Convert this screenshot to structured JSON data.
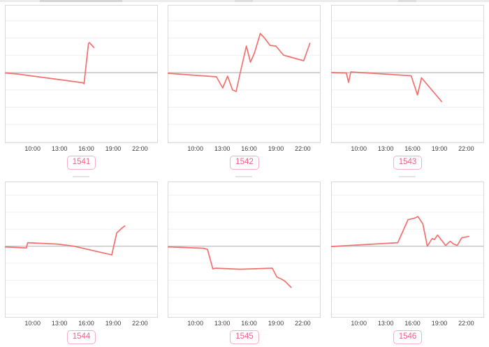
{
  "page": {
    "background": "#ffffff"
  },
  "style": {
    "line_color": "#f4706e",
    "zero_line_color": "#c6c6c6",
    "grid_color": "#f1f1f1",
    "border_color": "#d9d9d9",
    "tick_color": "#3c3c3c",
    "badge_color": "#ee6188",
    "badge_border": "#f6aec6"
  },
  "chart_data": [
    {
      "type": "line",
      "badge": "1541",
      "x_range": [
        6.9,
        24
      ],
      "zero_frac": 0.49,
      "tick_times": [
        10,
        13,
        16,
        19,
        22
      ],
      "tick_labels": [
        "10:00",
        "13:00",
        "16:00",
        "19:00",
        "22:00"
      ],
      "points": [
        [
          6.9,
          -0.5
        ],
        [
          8.3,
          -2
        ],
        [
          15.6,
          -14.5
        ],
        [
          15.75,
          -16
        ],
        [
          16.25,
          42
        ],
        [
          16.35,
          43
        ],
        [
          16.85,
          36
        ]
      ]
    },
    {
      "type": "line",
      "badge": "1542",
      "x_range": [
        6.9,
        24
      ],
      "zero_frac": 0.49,
      "tick_times": [
        10,
        13,
        16,
        19,
        22
      ],
      "tick_labels": [
        "10:00",
        "13:00",
        "16:00",
        "19:00",
        "22:00"
      ],
      "points": [
        [
          6.9,
          -1
        ],
        [
          12.35,
          -6
        ],
        [
          13.05,
          -22
        ],
        [
          13.6,
          -5
        ],
        [
          14.15,
          -25
        ],
        [
          14.55,
          -27
        ],
        [
          15.05,
          2
        ],
        [
          15.7,
          38
        ],
        [
          16.15,
          15
        ],
        [
          16.6,
          28
        ],
        [
          17.25,
          56
        ],
        [
          17.7,
          50
        ],
        [
          18.35,
          39
        ],
        [
          19.0,
          38
        ],
        [
          19.85,
          25
        ],
        [
          22.1,
          17
        ],
        [
          22.8,
          42
        ]
      ]
    },
    {
      "type": "line",
      "badge": "1543",
      "x_range": [
        6.9,
        24
      ],
      "zero_frac": 0.49,
      "tick_times": [
        10,
        13,
        16,
        19,
        22
      ],
      "tick_labels": [
        "10:00",
        "13:00",
        "16:00",
        "19:00",
        "22:00"
      ],
      "points": [
        [
          6.9,
          0
        ],
        [
          8.6,
          -0.5
        ],
        [
          8.85,
          -14
        ],
        [
          9.1,
          1
        ],
        [
          15.85,
          -4.5
        ],
        [
          16.55,
          -32
        ],
        [
          17.0,
          -7.5
        ],
        [
          19.25,
          -41.5
        ]
      ]
    },
    {
      "type": "line",
      "badge": "1544",
      "x_range": [
        6.9,
        24
      ],
      "zero_frac": 0.475,
      "tick_times": [
        10,
        13,
        16,
        19,
        22
      ],
      "tick_labels": [
        "10:00",
        "13:00",
        "16:00",
        "19:00",
        "22:00"
      ],
      "points": [
        [
          6.9,
          -1
        ],
        [
          9.3,
          -2.5
        ],
        [
          9.45,
          5
        ],
        [
          12.8,
          3
        ],
        [
          14.6,
          0
        ],
        [
          18.7,
          -12
        ],
        [
          18.85,
          -12.5
        ],
        [
          19.4,
          19
        ],
        [
          19.9,
          25
        ],
        [
          20.3,
          29
        ]
      ]
    },
    {
      "type": "line",
      "badge": "1545",
      "x_range": [
        6.9,
        24
      ],
      "zero_frac": 0.475,
      "tick_times": [
        10,
        13,
        16,
        19,
        22
      ],
      "tick_labels": [
        "10:00",
        "13:00",
        "16:00",
        "19:00",
        "22:00"
      ],
      "points": [
        [
          6.9,
          -1
        ],
        [
          10.9,
          -3
        ],
        [
          11.35,
          -4.5
        ],
        [
          11.95,
          -32.5
        ],
        [
          12.3,
          -31.5
        ],
        [
          15.0,
          -33
        ],
        [
          18.6,
          -31.5
        ],
        [
          19.1,
          -44
        ],
        [
          19.6,
          -47
        ],
        [
          20.0,
          -50
        ],
        [
          20.7,
          -59
        ]
      ]
    },
    {
      "type": "line",
      "badge": "1546",
      "x_range": [
        6.9,
        24
      ],
      "zero_frac": 0.475,
      "tick_times": [
        10,
        13,
        16,
        19,
        22
      ],
      "tick_labels": [
        "10:00",
        "13:00",
        "16:00",
        "19:00",
        "22:00"
      ],
      "points": [
        [
          6.9,
          -0.5
        ],
        [
          14.35,
          5
        ],
        [
          15.5,
          38
        ],
        [
          16.2,
          40
        ],
        [
          16.6,
          42.5
        ],
        [
          17.15,
          32
        ],
        [
          17.65,
          0
        ],
        [
          18.2,
          11
        ],
        [
          18.45,
          9.5
        ],
        [
          18.8,
          16
        ],
        [
          19.7,
          1
        ],
        [
          20.2,
          7
        ],
        [
          20.6,
          3
        ],
        [
          21.0,
          1
        ],
        [
          21.5,
          12
        ],
        [
          22.3,
          14
        ]
      ]
    }
  ]
}
